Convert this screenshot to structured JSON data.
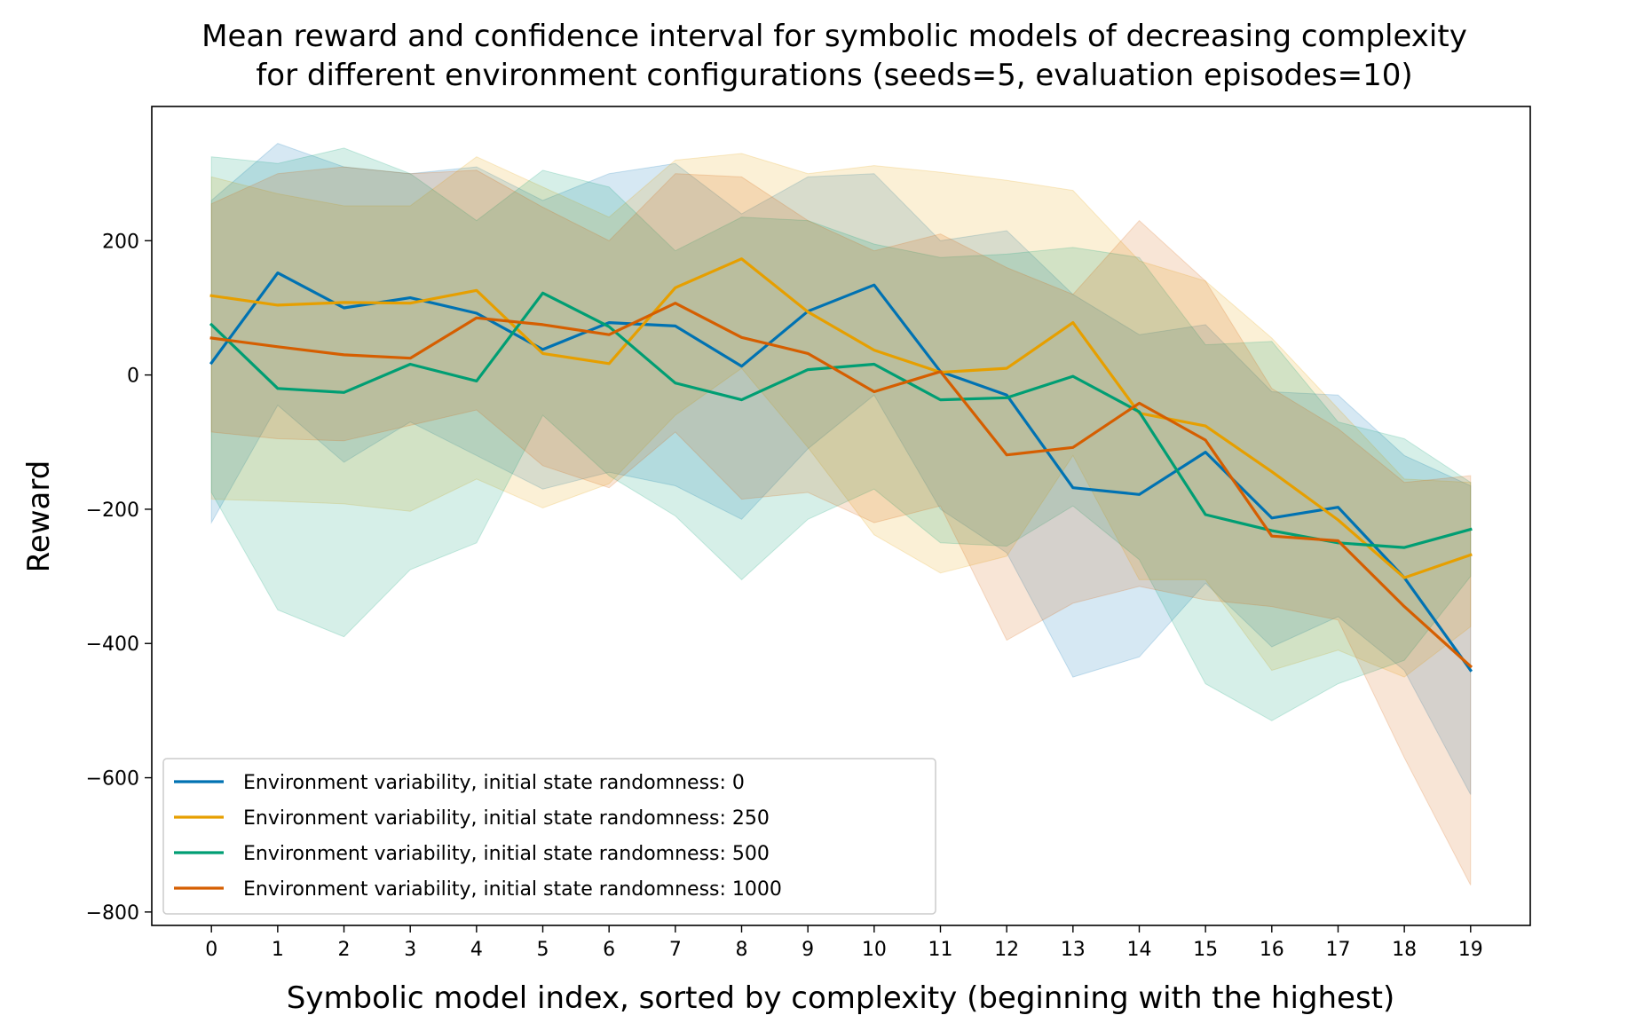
{
  "chart_data": {
    "type": "line",
    "title_lines": [
      "Mean reward and confidence interval for symbolic models of decreasing complexity",
      "for different environment configurations (seeds=5, evaluation episodes=10)"
    ],
    "xlabel": "Symbolic model index, sorted by complexity (beginning with the highest)",
    "ylabel": "Reward",
    "x": [
      0,
      1,
      2,
      3,
      4,
      5,
      6,
      7,
      8,
      9,
      10,
      11,
      12,
      13,
      14,
      15,
      16,
      17,
      18,
      19
    ],
    "xlim": [
      -0.9,
      19.9
    ],
    "ylim": [
      -820,
      400
    ],
    "yticks": [
      200,
      0,
      -200,
      -400,
      -600,
      -800
    ],
    "ytick_labels": [
      "200",
      "0",
      "−200",
      "−400",
      "−600",
      "−800"
    ],
    "grid": false,
    "legend_position": "lower-left",
    "series": [
      {
        "name": "Environment variability, initial state randomness: 0",
        "color": "#0072b2",
        "values": [
          18,
          152,
          100,
          115,
          92,
          38,
          78,
          73,
          13,
          95,
          134,
          5,
          -30,
          -168,
          -178,
          -115,
          -213,
          -197,
          -302,
          -440
        ],
        "upper": [
          260,
          345,
          310,
          300,
          310,
          260,
          300,
          315,
          240,
          295,
          300,
          200,
          215,
          120,
          60,
          75,
          -25,
          -30,
          -120,
          -165
        ],
        "lower": [
          -220,
          -45,
          -130,
          -70,
          -120,
          -170,
          -145,
          -165,
          -215,
          -110,
          -30,
          -200,
          -265,
          -450,
          -420,
          -310,
          -405,
          -360,
          -440,
          -625
        ]
      },
      {
        "name": "Environment variability, initial state randomness: 250",
        "color": "#e69f00",
        "values": [
          118,
          104,
          108,
          107,
          126,
          32,
          17,
          130,
          173,
          94,
          37,
          4,
          10,
          78,
          -57,
          -76,
          -144,
          -216,
          -302,
          -268
        ],
        "upper": [
          295,
          270,
          252,
          252,
          325,
          280,
          235,
          320,
          330,
          300,
          312,
          302,
          290,
          275,
          170,
          140,
          55,
          -50,
          -155,
          -160
        ],
        "lower": [
          -185,
          -188,
          -192,
          -203,
          -155,
          -198,
          -162,
          -60,
          10,
          -108,
          -238,
          -295,
          -270,
          -120,
          -305,
          -305,
          -440,
          -410,
          -450,
          -375
        ]
      },
      {
        "name": "Environment variability, initial state randomness: 500",
        "color": "#009e73",
        "values": [
          75,
          -20,
          -26,
          16,
          -9,
          122,
          72,
          -12,
          -37,
          8,
          16,
          -37,
          -34,
          -2,
          -55,
          -208,
          -232,
          -250,
          -257,
          -230
        ],
        "upper": [
          325,
          315,
          338,
          300,
          230,
          305,
          280,
          185,
          235,
          230,
          195,
          175,
          180,
          190,
          175,
          45,
          50,
          -70,
          -95,
          -160
        ],
        "lower": [
          -175,
          -350,
          -390,
          -290,
          -250,
          -60,
          -150,
          -210,
          -305,
          -215,
          -170,
          -250,
          -255,
          -195,
          -275,
          -460,
          -515,
          -460,
          -425,
          -300
        ]
      },
      {
        "name": "Environment variability, initial state randomness: 1000",
        "color": "#d55e00",
        "values": [
          55,
          42,
          30,
          25,
          85,
          75,
          60,
          107,
          56,
          32,
          -25,
          5,
          -119,
          -108,
          -42,
          -97,
          -240,
          -247,
          -345,
          -434
        ],
        "upper": [
          255,
          300,
          310,
          300,
          305,
          250,
          200,
          300,
          295,
          230,
          185,
          210,
          160,
          120,
          230,
          140,
          -20,
          -80,
          -160,
          -150
        ],
        "lower": [
          -85,
          -95,
          -98,
          -75,
          -52,
          -135,
          -168,
          -85,
          -185,
          -175,
          -220,
          -195,
          -395,
          -340,
          -315,
          -335,
          -345,
          -365,
          -570,
          -760
        ]
      }
    ]
  }
}
